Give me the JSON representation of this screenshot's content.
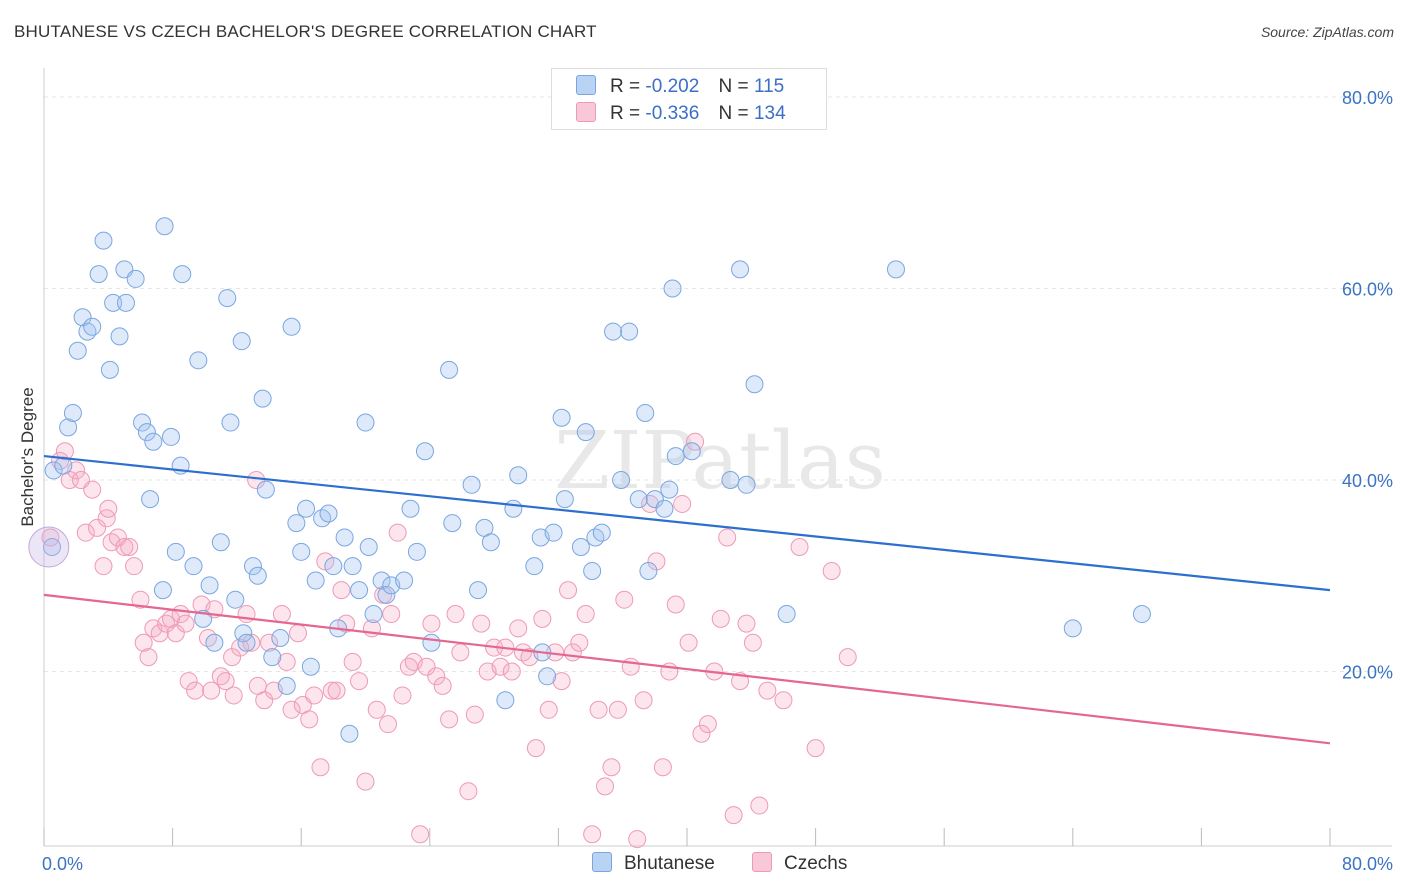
{
  "header": {
    "title": "BHUTANESE VS CZECH BACHELOR'S DEGREE CORRELATION CHART",
    "source": "Source: ZipAtlas.com"
  },
  "legend": {
    "rows": [
      {
        "r_label": "R =",
        "r_value": "-0.202",
        "n_label": "N =",
        "n_value": "115"
      },
      {
        "r_label": "R =",
        "r_value": "-0.336",
        "n_label": "N =",
        "n_value": "134"
      }
    ]
  },
  "bottom_legend": {
    "items": [
      {
        "label": "Bhutanese",
        "color": "#a8c8f0"
      },
      {
        "label": "Czechs",
        "color": "#f5b8cc"
      }
    ]
  },
  "watermark": "ZIPatlas",
  "colors": {
    "blue_fill": "rgba(160,195,240,0.35)",
    "blue_stroke": "#7aa6e0",
    "blue_line": "#2d6fce",
    "pink_fill": "rgba(245,170,195,0.3)",
    "pink_stroke": "#ee9ab6",
    "pink_line": "#e4678f",
    "tick_label": "#3b73c4"
  },
  "chart_data": {
    "type": "scatter",
    "title": "BHUTANESE VS CZECH BACHELOR'S DEGREE CORRELATION CHART",
    "xlabel": "",
    "ylabel": "Bachelor's Degree",
    "xlim": [
      0,
      80
    ],
    "ylim": [
      0,
      80
    ],
    "x_tick_labels": [
      "0.0%",
      "80.0%"
    ],
    "y_ticks": [
      20,
      40,
      60,
      80
    ],
    "y_tick_labels": [
      "20.0%",
      "40.0%",
      "60.0%",
      "80.0%"
    ],
    "grid": true,
    "legend_placement": "top-center",
    "series": [
      {
        "name": "Bhutanese",
        "r": -0.202,
        "n": 115,
        "trend": {
          "x0": 0,
          "y0": 42.5,
          "x1": 80,
          "y1": 28.5
        },
        "points": [
          [
            0.5,
            33
          ],
          [
            0.6,
            41
          ],
          [
            1.2,
            41.5
          ],
          [
            1.5,
            45.5
          ],
          [
            1.8,
            47
          ],
          [
            2.1,
            53.5
          ],
          [
            2.4,
            57
          ],
          [
            2.7,
            55.5
          ],
          [
            3.0,
            56
          ],
          [
            3.4,
            61.5
          ],
          [
            3.7,
            65
          ],
          [
            4.1,
            51.5
          ],
          [
            4.3,
            58.5
          ],
          [
            4.7,
            55
          ],
          [
            5.0,
            62
          ],
          [
            5.1,
            58.5
          ],
          [
            5.7,
            61
          ],
          [
            6.1,
            46
          ],
          [
            6.4,
            45
          ],
          [
            6.6,
            38
          ],
          [
            6.8,
            44
          ],
          [
            7.4,
            28.5
          ],
          [
            7.5,
            66.5
          ],
          [
            7.9,
            44.5
          ],
          [
            8.2,
            32.5
          ],
          [
            8.5,
            41.5
          ],
          [
            8.6,
            61.5
          ],
          [
            9.3,
            31
          ],
          [
            9.6,
            52.5
          ],
          [
            9.9,
            25.5
          ],
          [
            10.3,
            29
          ],
          [
            10.6,
            23
          ],
          [
            11.0,
            33.5
          ],
          [
            11.4,
            59
          ],
          [
            11.6,
            46
          ],
          [
            11.9,
            27.5
          ],
          [
            12.3,
            54.5
          ],
          [
            12.4,
            24
          ],
          [
            12.6,
            23
          ],
          [
            13.0,
            31
          ],
          [
            13.3,
            30
          ],
          [
            13.6,
            48.5
          ],
          [
            13.8,
            39
          ],
          [
            14.2,
            21.5
          ],
          [
            14.7,
            23.5
          ],
          [
            15.1,
            18.5
          ],
          [
            15.4,
            56
          ],
          [
            15.7,
            35.5
          ],
          [
            16.0,
            32.5
          ],
          [
            16.3,
            37
          ],
          [
            16.6,
            20.5
          ],
          [
            16.9,
            29.5
          ],
          [
            17.3,
            36
          ],
          [
            17.7,
            36.5
          ],
          [
            18.0,
            31
          ],
          [
            18.3,
            24.5
          ],
          [
            18.7,
            34
          ],
          [
            19.0,
            13.5
          ],
          [
            19.2,
            31
          ],
          [
            19.6,
            28.5
          ],
          [
            20.0,
            46
          ],
          [
            20.2,
            33
          ],
          [
            20.5,
            26
          ],
          [
            21.0,
            29.5
          ],
          [
            21.3,
            28
          ],
          [
            21.6,
            29
          ],
          [
            22.4,
            29.5
          ],
          [
            22.8,
            37
          ],
          [
            23.2,
            32.5
          ],
          [
            23.7,
            43
          ],
          [
            24.1,
            23
          ],
          [
            25.2,
            51.5
          ],
          [
            25.4,
            35.5
          ],
          [
            26.6,
            39.5
          ],
          [
            27.0,
            28.5
          ],
          [
            27.4,
            35
          ],
          [
            27.8,
            33.5
          ],
          [
            28.7,
            17
          ],
          [
            29.2,
            37
          ],
          [
            29.5,
            40.5
          ],
          [
            30.5,
            31
          ],
          [
            30.9,
            34
          ],
          [
            31.0,
            22
          ],
          [
            31.3,
            19.5
          ],
          [
            31.7,
            34.5
          ],
          [
            32.2,
            46.5
          ],
          [
            32.4,
            38
          ],
          [
            33.4,
            33
          ],
          [
            33.7,
            45
          ],
          [
            34.1,
            30.5
          ],
          [
            34.3,
            34
          ],
          [
            34.7,
            34.5
          ],
          [
            35.4,
            55.5
          ],
          [
            35.9,
            40
          ],
          [
            36.4,
            55.5
          ],
          [
            37.0,
            38
          ],
          [
            37.4,
            47
          ],
          [
            37.6,
            30.5
          ],
          [
            38.0,
            38
          ],
          [
            38.6,
            37
          ],
          [
            38.9,
            39
          ],
          [
            39.1,
            60
          ],
          [
            39.3,
            42.5
          ],
          [
            40.3,
            43
          ],
          [
            42.7,
            40
          ],
          [
            43.3,
            62
          ],
          [
            43.7,
            39.5
          ],
          [
            44.2,
            50
          ],
          [
            46.2,
            26
          ],
          [
            53.0,
            62
          ],
          [
            64.0,
            24.5
          ],
          [
            68.3,
            26
          ]
        ],
        "big_point": [
          0.3,
          33
        ]
      },
      {
        "name": "Czechs",
        "r": -0.336,
        "n": 134,
        "trend": {
          "x0": 0,
          "y0": 28,
          "x1": 80,
          "y1": 12.5
        },
        "points": [
          [
            0.4,
            34
          ],
          [
            1.0,
            42
          ],
          [
            1.3,
            43
          ],
          [
            1.6,
            40
          ],
          [
            2.0,
            41
          ],
          [
            2.3,
            40
          ],
          [
            2.6,
            34.5
          ],
          [
            3.0,
            39
          ],
          [
            3.3,
            35
          ],
          [
            3.7,
            31
          ],
          [
            3.9,
            36
          ],
          [
            4.0,
            37
          ],
          [
            4.2,
            33.5
          ],
          [
            4.6,
            34
          ],
          [
            5.0,
            33
          ],
          [
            5.3,
            33
          ],
          [
            5.6,
            31
          ],
          [
            6.0,
            27.5
          ],
          [
            6.2,
            23
          ],
          [
            6.5,
            21.5
          ],
          [
            6.8,
            24.5
          ],
          [
            7.2,
            24
          ],
          [
            7.6,
            25
          ],
          [
            7.9,
            25.5
          ],
          [
            8.2,
            24
          ],
          [
            8.5,
            26
          ],
          [
            8.8,
            25
          ],
          [
            9.0,
            19
          ],
          [
            9.4,
            18
          ],
          [
            9.8,
            27
          ],
          [
            10.2,
            23.5
          ],
          [
            10.4,
            18
          ],
          [
            10.6,
            26.5
          ],
          [
            11.0,
            19.5
          ],
          [
            11.3,
            19
          ],
          [
            11.7,
            21.5
          ],
          [
            11.8,
            17.5
          ],
          [
            12.2,
            22.5
          ],
          [
            12.6,
            26
          ],
          [
            12.9,
            23
          ],
          [
            13.2,
            40
          ],
          [
            13.3,
            18.5
          ],
          [
            13.7,
            17
          ],
          [
            14.0,
            23
          ],
          [
            14.3,
            18
          ],
          [
            14.8,
            26
          ],
          [
            15.1,
            21
          ],
          [
            15.4,
            16
          ],
          [
            15.8,
            24
          ],
          [
            16.1,
            16.5
          ],
          [
            16.5,
            15
          ],
          [
            16.8,
            17.5
          ],
          [
            17.2,
            10
          ],
          [
            17.5,
            31.5
          ],
          [
            17.9,
            18
          ],
          [
            18.2,
            18
          ],
          [
            18.5,
            28.5
          ],
          [
            18.8,
            25
          ],
          [
            19.2,
            21
          ],
          [
            19.6,
            19
          ],
          [
            20.0,
            8.5
          ],
          [
            20.4,
            24.5
          ],
          [
            20.7,
            16
          ],
          [
            21.1,
            28
          ],
          [
            21.4,
            14.5
          ],
          [
            21.6,
            26
          ],
          [
            22.0,
            34.5
          ],
          [
            22.3,
            17.5
          ],
          [
            22.7,
            20.5
          ],
          [
            23.0,
            21
          ],
          [
            23.4,
            3
          ],
          [
            23.8,
            20.5
          ],
          [
            24.1,
            25
          ],
          [
            24.4,
            19.5
          ],
          [
            24.8,
            18.5
          ],
          [
            25.2,
            15
          ],
          [
            25.6,
            26
          ],
          [
            25.9,
            22
          ],
          [
            26.4,
            7.5
          ],
          [
            26.8,
            15.5
          ],
          [
            27.2,
            25
          ],
          [
            27.6,
            20
          ],
          [
            28.0,
            22.5
          ],
          [
            28.4,
            20.5
          ],
          [
            28.7,
            22.5
          ],
          [
            29.1,
            20
          ],
          [
            29.5,
            24.5
          ],
          [
            29.8,
            22
          ],
          [
            30.2,
            21.5
          ],
          [
            30.6,
            12
          ],
          [
            31.0,
            25.5
          ],
          [
            31.4,
            16
          ],
          [
            31.8,
            22
          ],
          [
            32.2,
            19
          ],
          [
            32.6,
            28.5
          ],
          [
            32.9,
            22
          ],
          [
            33.3,
            23
          ],
          [
            33.7,
            26
          ],
          [
            34.1,
            3
          ],
          [
            34.5,
            16
          ],
          [
            34.9,
            8
          ],
          [
            35.3,
            10
          ],
          [
            35.7,
            16
          ],
          [
            36.1,
            27.5
          ],
          [
            36.5,
            20.5
          ],
          [
            36.9,
            2.5
          ],
          [
            37.3,
            17
          ],
          [
            37.7,
            37.5
          ],
          [
            38.1,
            31.5
          ],
          [
            38.5,
            10
          ],
          [
            38.9,
            20
          ],
          [
            39.3,
            27
          ],
          [
            39.7,
            37.5
          ],
          [
            40.1,
            23
          ],
          [
            40.5,
            44
          ],
          [
            40.9,
            13.5
          ],
          [
            41.3,
            14.5
          ],
          [
            41.7,
            20
          ],
          [
            42.1,
            25.5
          ],
          [
            42.5,
            34
          ],
          [
            42.9,
            5
          ],
          [
            43.3,
            19
          ],
          [
            43.7,
            25
          ],
          [
            44.1,
            23
          ],
          [
            44.5,
            6
          ],
          [
            45.0,
            18
          ],
          [
            46.0,
            17
          ],
          [
            47.0,
            33
          ],
          [
            48.0,
            12
          ],
          [
            49.0,
            30.5
          ],
          [
            50.0,
            21.5
          ]
        ]
      }
    ]
  }
}
